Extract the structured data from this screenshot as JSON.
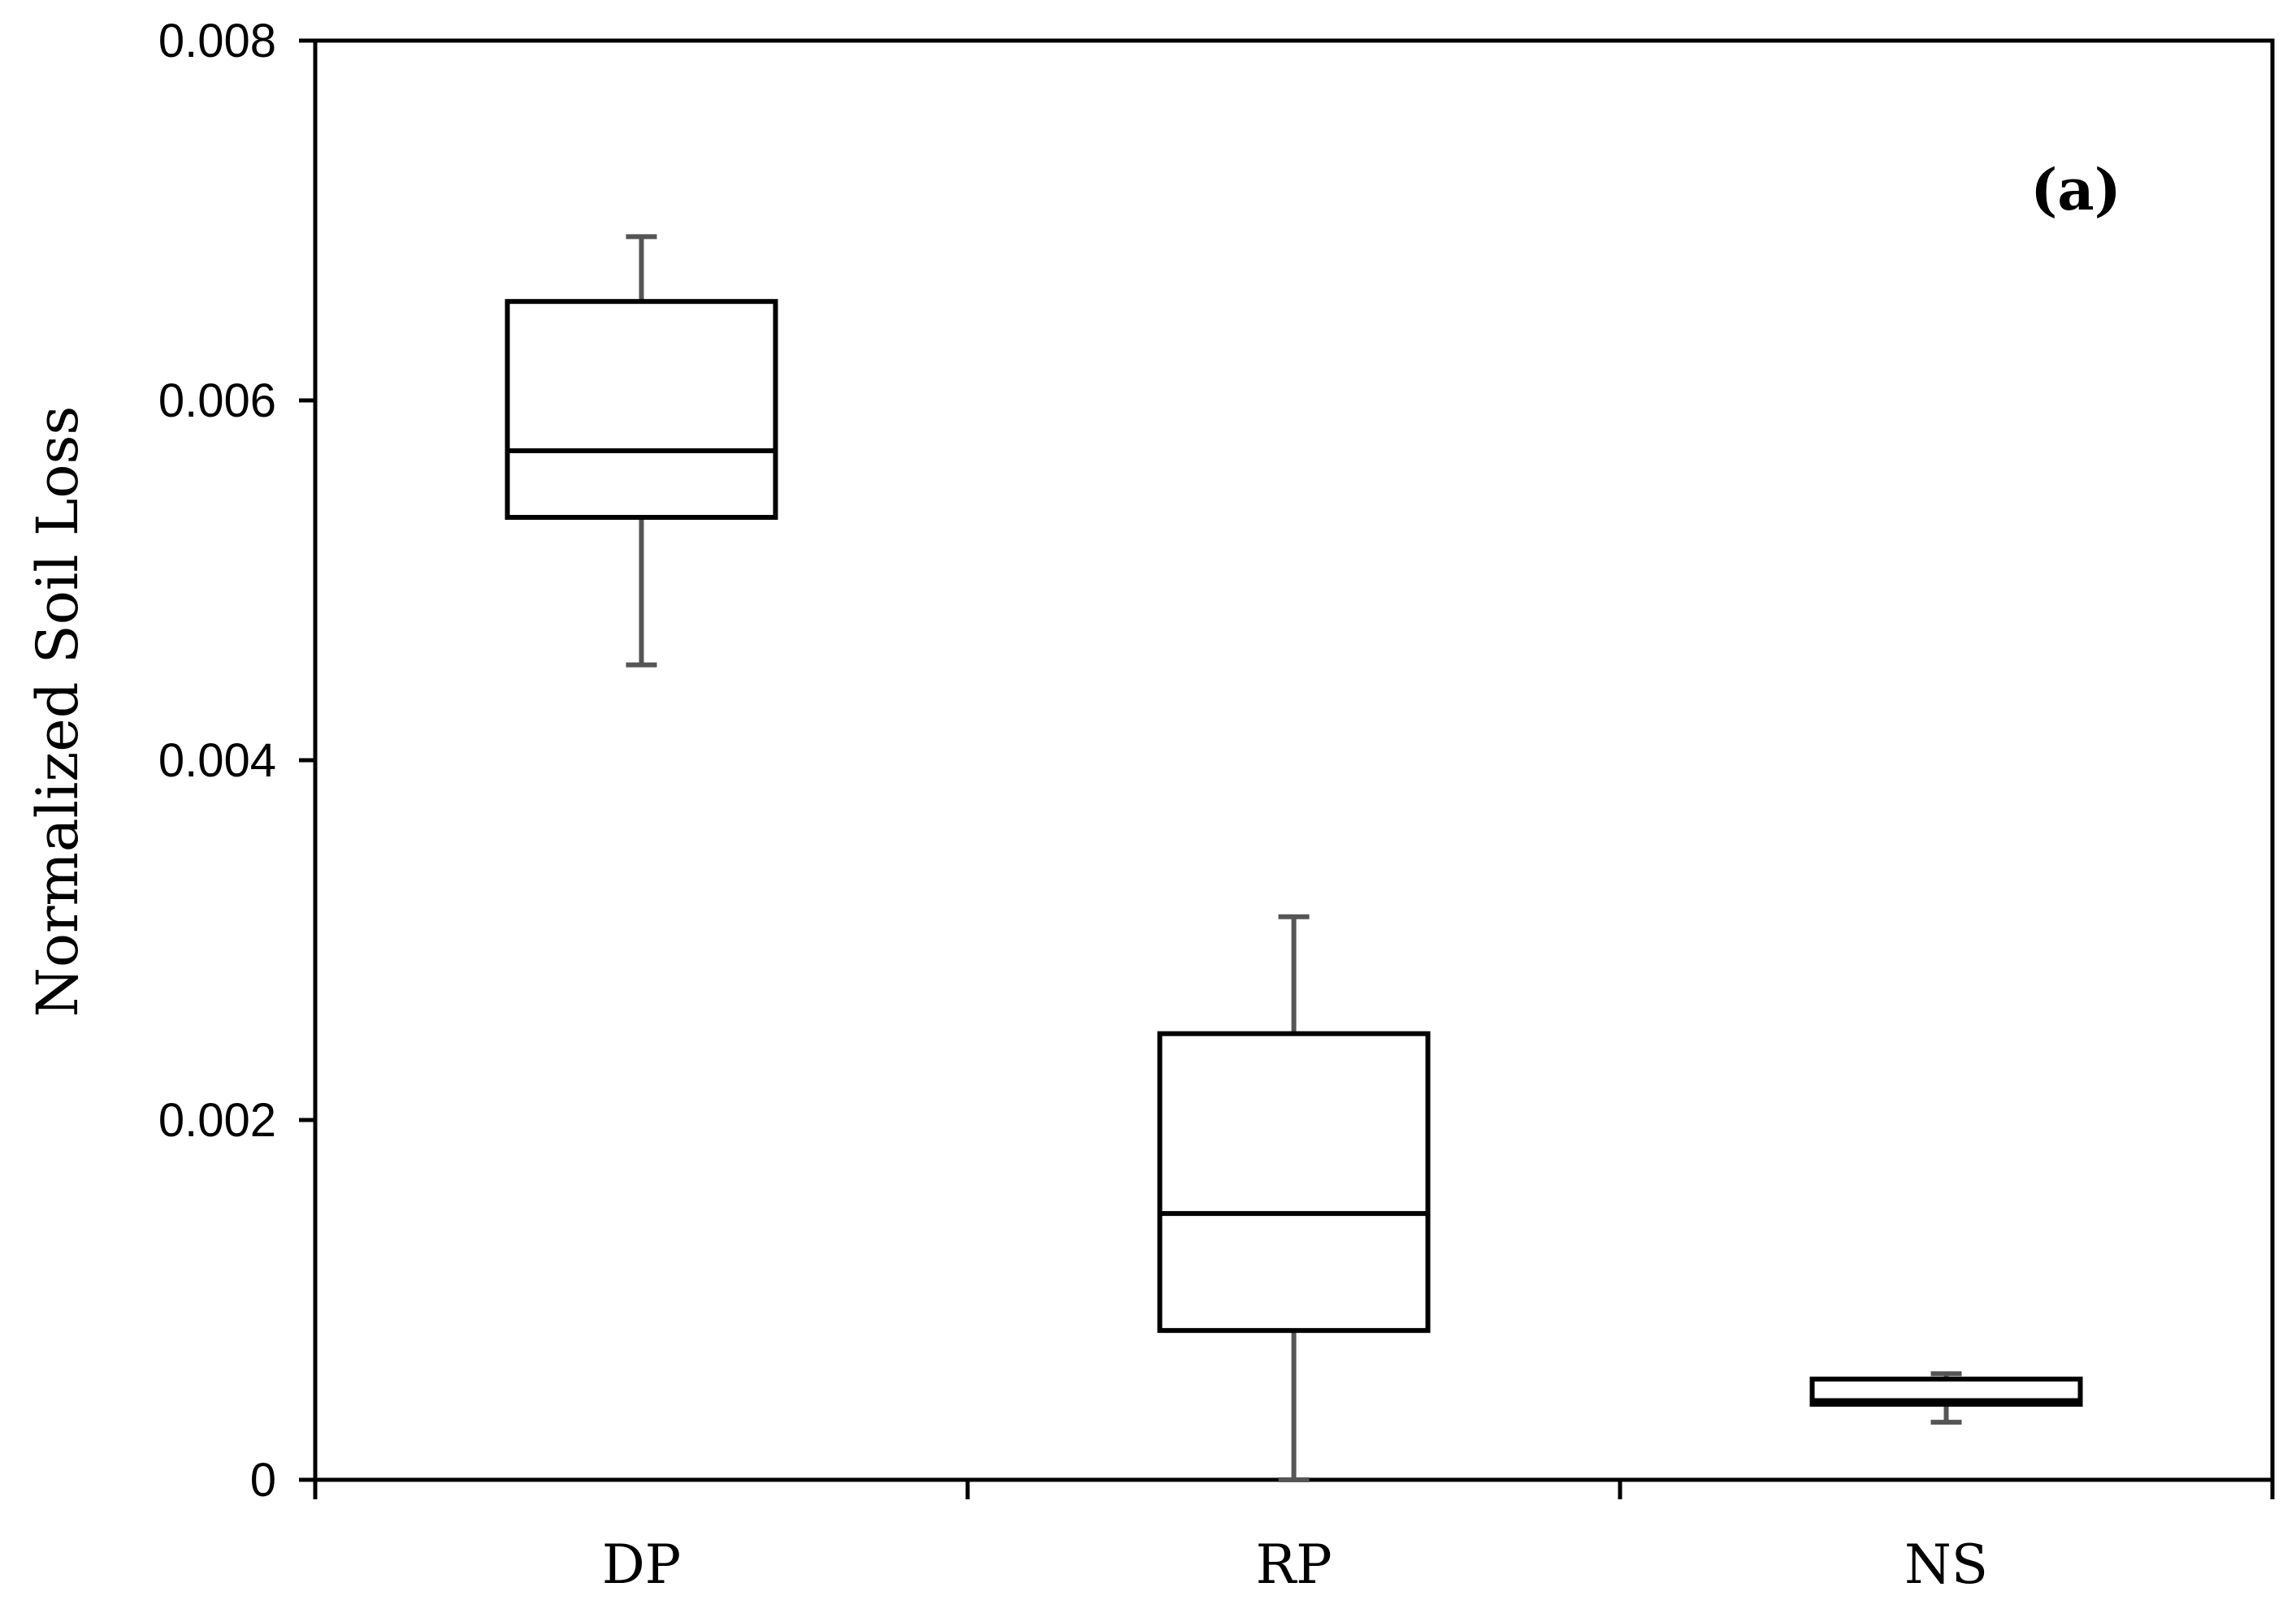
{
  "chart_data": {
    "type": "box",
    "title": "",
    "panel_label": "(a)",
    "xlabel": "",
    "ylabel": "Normalized Soil Loss",
    "ylim": [
      0,
      0.008
    ],
    "yticks": [
      0,
      0.002,
      0.004,
      0.006,
      0.008
    ],
    "ytick_labels": [
      "0",
      "0.002",
      "0.004",
      "0.006",
      "0.008"
    ],
    "categories": [
      "DP",
      "RP",
      "NS"
    ],
    "boxes": [
      {
        "category": "DP",
        "min": 0.00453,
        "q1": 0.00535,
        "median": 0.00572,
        "q3": 0.00655,
        "max": 0.00691
      },
      {
        "category": "RP",
        "min": 0.0,
        "q1": 0.00083,
        "median": 0.00148,
        "q3": 0.00248,
        "max": 0.00313
      },
      {
        "category": "NS",
        "min": 0.00032,
        "q1": 0.00042,
        "median": 0.00044,
        "q3": 0.00056,
        "max": 0.00059
      }
    ],
    "grid": false,
    "colors": {
      "box_stroke": "#000000",
      "whisker": "#555555",
      "box_fill": "#ffffff"
    }
  }
}
